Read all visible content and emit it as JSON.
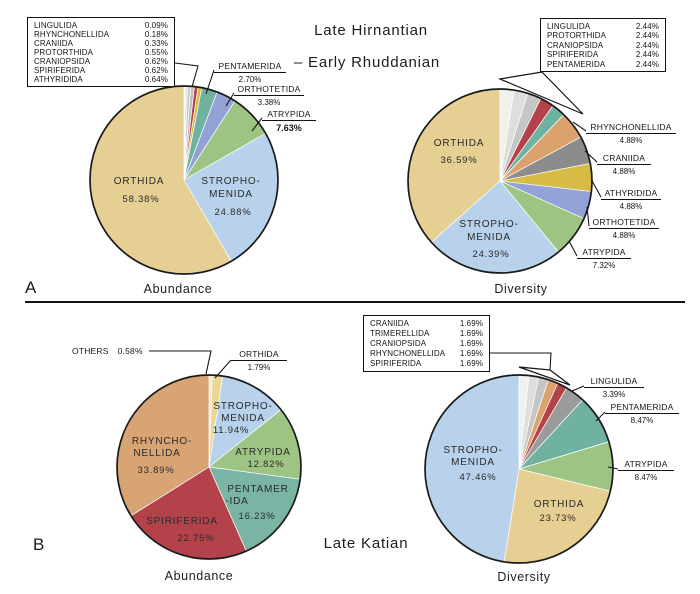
{
  "figure": {
    "panel_a": {
      "label": "A",
      "title_line1": "Late Hirnantian",
      "title_line2": "– Early Rhuddanian",
      "abundance_caption": "Abundance",
      "diversity_caption": "Diversity"
    },
    "panel_b": {
      "label": "B",
      "title": "Late Katian",
      "abundance_caption": "Abundance",
      "diversity_caption": "Diversity"
    }
  },
  "chart_data": [
    {
      "id": "hirnantian-abundance",
      "type": "pie",
      "title": "Abundance",
      "period": "Late Hirnantian – Early Rhuddanian",
      "legend_position": "top-left box",
      "slices": [
        {
          "label": "LINGULIDA",
          "value": 0.09,
          "display": "0.09%",
          "color": "#f0f0f0",
          "placement": "legend"
        },
        {
          "label": "RHYNCHONELLIDA",
          "value": 0.18,
          "display": "0.18%",
          "color": "#e4e4e4",
          "placement": "legend"
        },
        {
          "label": "CRANIIDA",
          "value": 0.33,
          "display": "0.33%",
          "color": "#d8d8d8",
          "placement": "legend"
        },
        {
          "label": "PROTORTHIDA",
          "value": 0.55,
          "display": "0.55%",
          "color": "#cacaca",
          "placement": "legend"
        },
        {
          "label": "CRANIOPSIDA",
          "value": 0.62,
          "display": "0.62%",
          "color": "#bdbdbd",
          "placement": "legend"
        },
        {
          "label": "SPIRIFERIDA",
          "value": 0.62,
          "display": "0.62%",
          "color": "#b3424b",
          "placement": "legend"
        },
        {
          "label": "ATHYRIDIDA",
          "value": 0.64,
          "display": "0.64%",
          "color": "#d6bc45",
          "placement": "legend"
        },
        {
          "label": "PENTAMERIDA",
          "value": 2.7,
          "display": "2.70%",
          "color": "#6fb2a2",
          "placement": "callout"
        },
        {
          "label": "ORTHOTETIDA",
          "value": 3.38,
          "display": "3.38%",
          "color": "#93a2d6",
          "placement": "callout"
        },
        {
          "label": "ATRYPIDA",
          "value": 7.63,
          "display": "7.63%",
          "color": "#9dc483",
          "placement": "callout"
        },
        {
          "label": "STROPHOMENIDA",
          "value": 24.88,
          "display": "24.88%",
          "color": "#b7d2ea",
          "placement": "inside"
        },
        {
          "label": "ORTHIDA",
          "value": 58.38,
          "display": "58.38%",
          "color": "#e6cf93",
          "placement": "inside"
        }
      ],
      "inner_texts": [
        "ORTHIDA",
        "58.38%",
        "STROPHO-",
        "MENIDA",
        "24.88%"
      ]
    },
    {
      "id": "hirnantian-diversity",
      "type": "pie",
      "title": "Diversity",
      "period": "Late Hirnantian – Early Rhuddanian",
      "legend_position": "top-right box",
      "slices": [
        {
          "label": "LINGULIDA",
          "value": 2.44,
          "display": "2.44%",
          "color": "#f0f0f0",
          "placement": "legend"
        },
        {
          "label": "PROTORTHIDA",
          "value": 2.44,
          "display": "2.44%",
          "color": "#dedede",
          "placement": "legend"
        },
        {
          "label": "CRANIOPSIDA",
          "value": 2.44,
          "display": "2.44%",
          "color": "#c6c6c6",
          "placement": "legend"
        },
        {
          "label": "SPIRIFERIDA",
          "value": 2.44,
          "display": "2.44%",
          "color": "#b3424b",
          "placement": "legend"
        },
        {
          "label": "PENTAMERIDA",
          "value": 2.44,
          "display": "2.44%",
          "color": "#6fb2a2",
          "placement": "legend"
        },
        {
          "label": "RHYNCHONELLIDA",
          "value": 4.88,
          "display": "4.88%",
          "color": "#dba26e",
          "placement": "callout"
        },
        {
          "label": "CRANIIDA",
          "value": 4.88,
          "display": "4.88%",
          "color": "#8c8c8c",
          "placement": "callout"
        },
        {
          "label": "ATHYRIDIDA",
          "value": 4.88,
          "display": "4.88%",
          "color": "#d6bc45",
          "placement": "callout"
        },
        {
          "label": "ORTHOTETIDA",
          "value": 4.88,
          "display": "4.88%",
          "color": "#93a2d6",
          "placement": "callout"
        },
        {
          "label": "ATRYPIDA",
          "value": 7.32,
          "display": "7.32%",
          "color": "#9dc483",
          "placement": "callout"
        },
        {
          "label": "STROPHOMENIDA",
          "value": 24.39,
          "display": "24.39%",
          "color": "#b7d2ea",
          "placement": "inside"
        },
        {
          "label": "ORTHIDA",
          "value": 36.59,
          "display": "36.59%",
          "color": "#e6cf93",
          "placement": "inside"
        }
      ],
      "inner_texts": [
        "ORTHIDA",
        "36.59%",
        "STROPHO-",
        "MENIDA",
        "24.39%"
      ]
    },
    {
      "id": "katian-abundance",
      "type": "pie",
      "title": "Abundance",
      "period": "Late Katian",
      "legend_position": "none",
      "slices": [
        {
          "label": "OTHERS",
          "value": 0.58,
          "display": "0.58%",
          "color": "#efe9d2",
          "placement": "callout"
        },
        {
          "label": "ORTHIDA",
          "value": 1.79,
          "display": "1.79%",
          "color": "#ead794",
          "placement": "callout"
        },
        {
          "label": "STROPHOMENIDA",
          "value": 11.94,
          "display": "11.94%",
          "color": "#b7d2ea",
          "placement": "inside"
        },
        {
          "label": "ATRYPIDA",
          "value": 12.82,
          "display": "12.82%",
          "color": "#9dc483",
          "placement": "inside"
        },
        {
          "label": "PENTAMERIDA",
          "value": 16.23,
          "display": "16.23%",
          "color": "#79b4a5",
          "placement": "inside"
        },
        {
          "label": "SPIRIFERIDA",
          "value": 22.75,
          "display": "22.75%",
          "color": "#b3424b",
          "placement": "inside"
        },
        {
          "label": "RHYNCHONELLIDA",
          "value": 33.89,
          "display": "33.89%",
          "color": "#d8a474",
          "placement": "inside"
        }
      ],
      "inner_texts": [
        "RHYNCHO-",
        "NELLIDA",
        "33.89%",
        "SPIRIFERIDA",
        "22.75%",
        "PENTAMER",
        "-IDA",
        "16.23%",
        "ATRYPIDA",
        "12.82%",
        "STROPHO-",
        "MENIDA",
        "11.94%"
      ]
    },
    {
      "id": "katian-diversity",
      "type": "pie",
      "title": "Diversity",
      "period": "Late Katian",
      "legend_position": "middle-left box",
      "slices": [
        {
          "label": "CRANIIDA",
          "value": 1.69,
          "display": "1.69%",
          "color": "#f0f0f0",
          "placement": "legend"
        },
        {
          "label": "TRIMERELLIDA",
          "value": 1.69,
          "display": "1.69%",
          "color": "#dedede",
          "placement": "legend"
        },
        {
          "label": "CRANIOPSIDA",
          "value": 1.69,
          "display": "1.69%",
          "color": "#c6c6c6",
          "placement": "legend"
        },
        {
          "label": "RHYNCHONELLIDA",
          "value": 1.69,
          "display": "1.69%",
          "color": "#dba26e",
          "placement": "legend"
        },
        {
          "label": "SPIRIFERIDA",
          "value": 1.69,
          "display": "1.69%",
          "color": "#b3424b",
          "placement": "legend"
        },
        {
          "label": "LINGULIDA",
          "value": 3.39,
          "display": "3.39%",
          "color": "#9b9b9b",
          "placement": "callout"
        },
        {
          "label": "PENTAMERIDA",
          "value": 8.47,
          "display": "8.47%",
          "color": "#6fb2a2",
          "placement": "callout"
        },
        {
          "label": "ATRYPIDA",
          "value": 8.47,
          "display": "8.47%",
          "color": "#9dc483",
          "placement": "callout"
        },
        {
          "label": "ORTHIDA",
          "value": 23.73,
          "display": "23.73%",
          "color": "#e6cf93",
          "placement": "inside"
        },
        {
          "label": "STROPHOMENIDA",
          "value": 47.46,
          "display": "47.46%",
          "color": "#b7d2ea",
          "placement": "inside"
        }
      ],
      "inner_texts": [
        "STROPHO-",
        "MENIDA",
        "47.46%",
        "ORTHIDA",
        "23.73%"
      ]
    }
  ]
}
